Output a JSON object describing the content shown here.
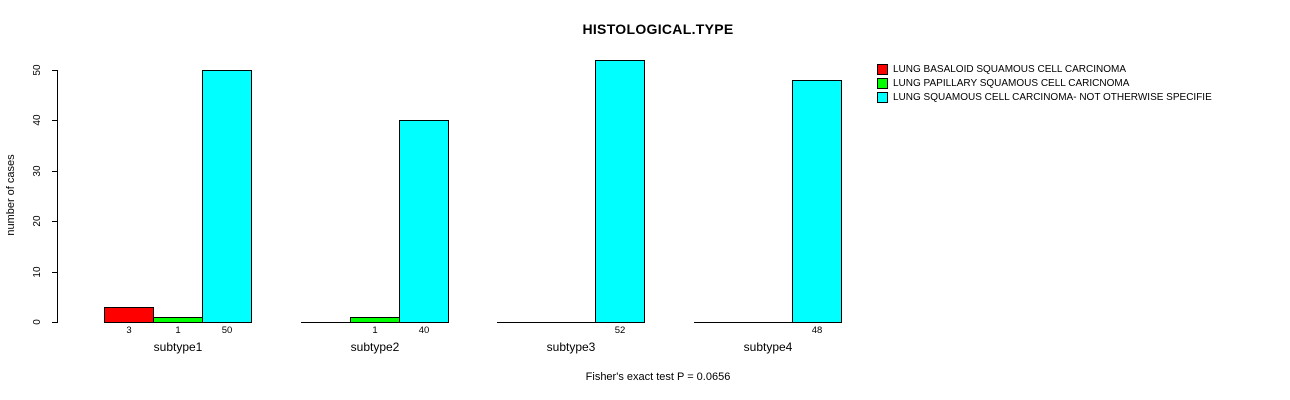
{
  "title": "HISTOLOGICAL.TYPE",
  "y_axis": {
    "label": "number of cases"
  },
  "footer": "Fisher's exact test P = 0.0656",
  "legend": {
    "items": [
      {
        "label": "LUNG BASALOID SQUAMOUS CELL CARCINOMA",
        "color": "#ff0000"
      },
      {
        "label": "LUNG PAPILLARY SQUAMOUS CELL CARICNOMA",
        "color": "#00ff00"
      },
      {
        "label": "LUNG SQUAMOUS CELL CARCINOMA- NOT OTHERWISE SPECIFIE",
        "color": "#00ffff"
      }
    ]
  },
  "chart_data": {
    "type": "bar",
    "grouped": "beside",
    "title": "HISTOLOGICAL.TYPE",
    "xlabel": "",
    "ylabel": "number of cases",
    "categories": [
      "subtype1",
      "subtype2",
      "subtype3",
      "subtype4"
    ],
    "series": [
      {
        "name": "LUNG BASALOID SQUAMOUS CELL CARCINOMA",
        "color": "#ff0000",
        "values": [
          3,
          0,
          0,
          0
        ]
      },
      {
        "name": "LUNG PAPILLARY SQUAMOUS CELL CARICNOMA",
        "color": "#00ff00",
        "values": [
          1,
          1,
          0,
          0
        ]
      },
      {
        "name": "LUNG SQUAMOUS CELL CARCINOMA- NOT OTHERWISE SPECIFIE",
        "color": "#00ffff",
        "values": [
          50,
          40,
          52,
          48
        ]
      }
    ],
    "yticks": [
      0,
      10,
      20,
      30,
      40,
      50
    ],
    "ylim": [
      0,
      52
    ],
    "grid": false,
    "show_value_labels_nonzero_only": true,
    "legend_position": "top-right",
    "annotation": "Fisher's exact test P = 0.0656"
  }
}
